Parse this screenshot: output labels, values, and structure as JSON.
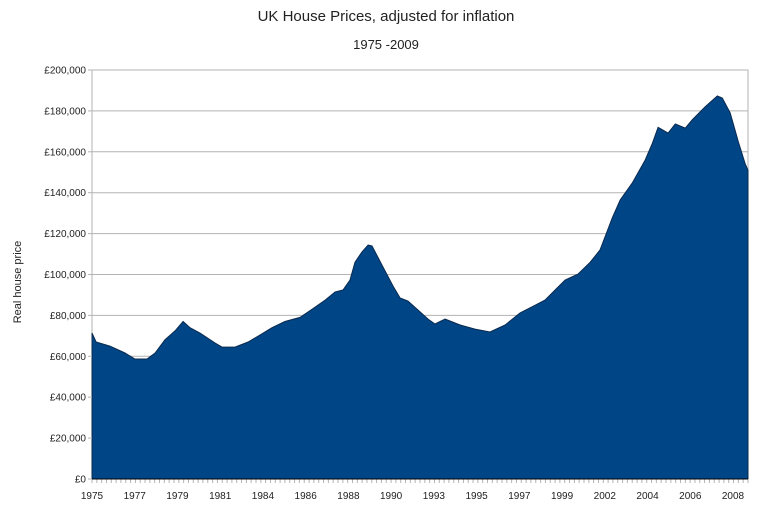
{
  "chart_data": {
    "type": "area",
    "title": "UK House Prices, adjusted for inflation",
    "subtitle": "1975 -2009",
    "xlabel": "",
    "ylabel": "Real house price",
    "ylim": [
      0,
      200000
    ],
    "xlim": [
      1975,
      2009
    ],
    "grid": true,
    "legend": "none",
    "fill_color": "#004586",
    "y_ticks": [
      {
        "value": 0,
        "label": "£0"
      },
      {
        "value": 20000,
        "label": "£20,000"
      },
      {
        "value": 40000,
        "label": "£40,000"
      },
      {
        "value": 60000,
        "label": "£60,000"
      },
      {
        "value": 80000,
        "label": "£80,000"
      },
      {
        "value": 100000,
        "label": "£100,000"
      },
      {
        "value": 120000,
        "label": "£120,000"
      },
      {
        "value": 140000,
        "label": "£140,000"
      },
      {
        "value": 160000,
        "label": "£160,000"
      },
      {
        "value": 180000,
        "label": "£180,000"
      },
      {
        "value": 200000,
        "label": "£200,000"
      }
    ],
    "x_tick_labels": [
      "1975",
      "1977",
      "1979",
      "1981",
      "1984",
      "1986",
      "1988",
      "1990",
      "1993",
      "1995",
      "1997",
      "1999",
      "2002",
      "2004",
      "2006",
      "2008"
    ],
    "series": [
      {
        "name": "Real house price",
        "x": [
          1975.0,
          1975.21,
          1975.93,
          1976.71,
          1977.23,
          1977.85,
          1978.27,
          1978.78,
          1979.3,
          1979.72,
          1980.08,
          1980.6,
          1981.38,
          1981.74,
          1982.41,
          1983.09,
          1983.81,
          1984.33,
          1985.0,
          1985.78,
          1986.4,
          1987.08,
          1987.6,
          1988.01,
          1988.37,
          1988.63,
          1988.99,
          1989.31,
          1989.51,
          1990.03,
          1990.6,
          1990.97,
          1991.38,
          1991.9,
          1992.42,
          1992.78,
          1993.3,
          1994.08,
          1994.85,
          1995.63,
          1996.41,
          1997.19,
          1997.97,
          1998.48,
          1999.0,
          1999.52,
          2000.19,
          2000.82,
          2001.33,
          2001.96,
          2002.37,
          2003.0,
          2003.67,
          2004.03,
          2004.34,
          2004.86,
          2005.23,
          2005.75,
          2006.11,
          2006.78,
          2007.41,
          2007.67,
          2008.08,
          2008.5,
          2008.86,
          2009.0
        ],
        "y": [
          71400,
          67000,
          65000,
          61600,
          58700,
          58700,
          61600,
          68000,
          72400,
          77000,
          74000,
          71400,
          66500,
          64500,
          64500,
          67000,
          71000,
          74000,
          77000,
          79000,
          83000,
          87500,
          91500,
          92400,
          97300,
          106000,
          111000,
          114400,
          114000,
          104600,
          94400,
          88500,
          87000,
          82600,
          78200,
          75800,
          78200,
          75300,
          73300,
          71900,
          75300,
          81200,
          85000,
          87500,
          92400,
          97300,
          100200,
          106000,
          112000,
          127600,
          136400,
          144700,
          156000,
          163800,
          172000,
          169200,
          173600,
          171600,
          175600,
          182000,
          187300,
          186300,
          179000,
          164800,
          154000,
          151000
        ]
      }
    ]
  }
}
